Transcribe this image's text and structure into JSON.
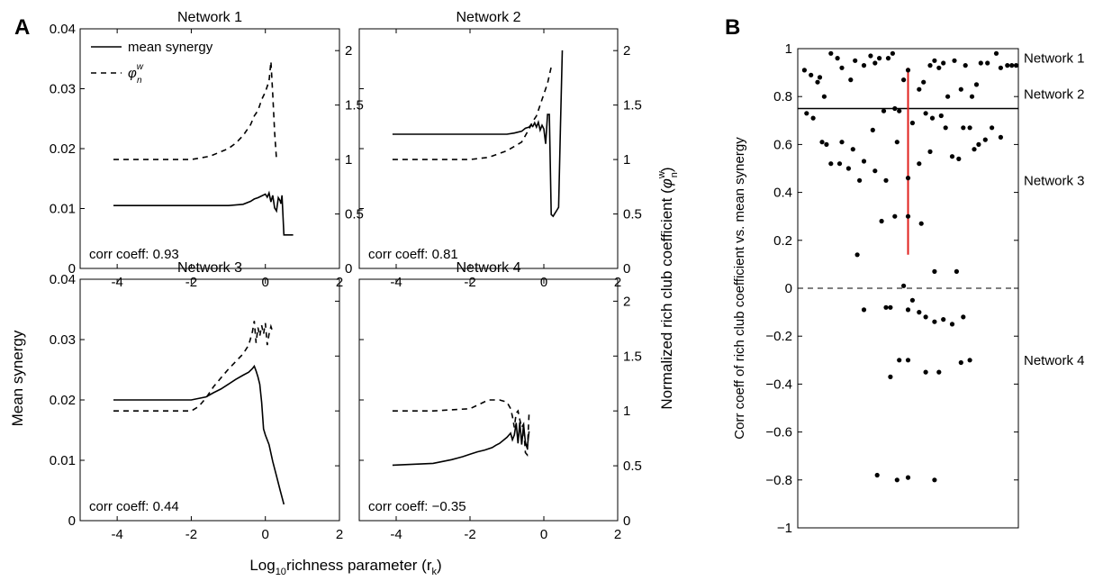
{
  "panel_labels": {
    "a": "A",
    "b": "B"
  },
  "shared": {
    "xlabel": {
      "pre": "Log",
      "sub": "10",
      "mid": "richness parameter (r",
      "sub2": "k",
      "post": ")"
    },
    "ylabel_left": "Mean synergy",
    "ylabel_right": {
      "pre": "Normalized rich club coefficient (",
      "phi": "φ",
      "sup": "w",
      "sub": "n",
      "post": ")"
    },
    "legend": {
      "solid": "mean synergy",
      "dashed_phi": "φ",
      "dashed_sup": "w",
      "dashed_sub": "n"
    }
  },
  "chart_data": [
    {
      "type": "line",
      "title": "Network 1",
      "annotation": "corr coeff: 0.93",
      "xlim": [
        -5,
        2
      ],
      "ylim": [
        0,
        0.04
      ],
      "y2lim": [
        0,
        2.2
      ],
      "xticks": [
        "-4",
        "-2",
        "0",
        "2"
      ],
      "yticks": [
        "0",
        "0.01",
        "0.02",
        "0.03",
        "0.04"
      ],
      "y2ticks": [
        "0",
        "0.5",
        "1",
        "1.5",
        "2"
      ],
      "series": [
        {
          "name": "mean synergy",
          "axis": "left",
          "style": "solid",
          "x": [
            -4.1,
            -1.0,
            -0.6,
            -0.4,
            -0.3,
            -0.2,
            -0.1,
            0.0,
            0.05,
            0.1,
            0.15,
            0.2,
            0.25,
            0.3,
            0.35,
            0.4,
            0.42,
            0.45,
            0.5,
            0.55,
            0.6,
            0.75
          ],
          "y": [
            0.0105,
            0.0105,
            0.0107,
            0.0112,
            0.0116,
            0.0118,
            0.0121,
            0.0124,
            0.0119,
            0.0126,
            0.0111,
            0.0122,
            0.0101,
            0.0096,
            0.0118,
            0.0113,
            0.0108,
            0.0122,
            0.0056,
            0.0056,
            0.0056,
            0.0056
          ]
        },
        {
          "name": "φnw",
          "axis": "right",
          "style": "dashed",
          "x": [
            -4.1,
            -2.0,
            -1.5,
            -1.0,
            -0.8,
            -0.6,
            -0.4,
            -0.3,
            -0.2,
            -0.1,
            0.0,
            0.1,
            0.15,
            0.2,
            0.25,
            0.3
          ],
          "y": [
            1.0,
            1.0,
            1.03,
            1.1,
            1.15,
            1.22,
            1.32,
            1.4,
            1.45,
            1.55,
            1.62,
            1.72,
            1.9,
            1.6,
            1.25,
            1.0
          ]
        }
      ]
    },
    {
      "type": "line",
      "title": "Network 2",
      "annotation": "corr coeff: 0.81",
      "xlim": [
        -5,
        2
      ],
      "ylim": [
        0,
        0.04
      ],
      "y2lim": [
        0,
        2.2
      ],
      "xticks": [
        "-4",
        "-2",
        "0",
        "2"
      ],
      "yticks": [],
      "y2ticks": [
        "0",
        "0.5",
        "1",
        "1.5",
        "2"
      ],
      "series": [
        {
          "name": "mean synergy",
          "axis": "left",
          "style": "solid",
          "x": [
            -4.1,
            -1.0,
            -0.8,
            -0.6,
            -0.5,
            -0.4,
            -0.35,
            -0.3,
            -0.25,
            -0.2,
            -0.15,
            -0.1,
            -0.05,
            0.0,
            0.05,
            0.1,
            0.15,
            0.2,
            0.25,
            0.3,
            0.35,
            0.4,
            0.45,
            0.5
          ],
          "y": [
            0.0224,
            0.0224,
            0.0226,
            0.0229,
            0.0234,
            0.0236,
            0.024,
            0.0237,
            0.0243,
            0.0236,
            0.0244,
            0.0231,
            0.0239,
            0.0233,
            0.0208,
            0.0257,
            0.0257,
            0.009,
            0.0087,
            0.0092,
            0.0097,
            0.0102,
            0.024,
            0.0364
          ]
        },
        {
          "name": "φnw",
          "axis": "right",
          "style": "dashed",
          "x": [
            -4.1,
            -2.0,
            -1.5,
            -1.0,
            -0.6,
            -0.4,
            -0.3,
            -0.2,
            -0.1,
            0.0,
            0.1,
            0.2,
            0.25
          ],
          "y": [
            1.0,
            1.0,
            1.02,
            1.08,
            1.16,
            1.28,
            1.35,
            1.4,
            1.5,
            1.6,
            1.7,
            1.85,
            1.85
          ]
        }
      ]
    },
    {
      "type": "line",
      "title": "Network 3",
      "annotation": "corr coeff: 0.44",
      "xlim": [
        -5,
        2
      ],
      "ylim": [
        0,
        0.04
      ],
      "y2lim": [
        0,
        2.2
      ],
      "xticks": [
        "-4",
        "-2",
        "0",
        "2"
      ],
      "yticks": [
        "0",
        "0.01",
        "0.02",
        "0.03",
        "0.04"
      ],
      "y2ticks": [],
      "series": [
        {
          "name": "mean synergy",
          "axis": "left",
          "style": "solid",
          "x": [
            -4.1,
            -2.0,
            -1.6,
            -1.4,
            -1.2,
            -1.0,
            -0.8,
            -0.6,
            -0.45,
            -0.35,
            -0.3,
            -0.25,
            -0.2,
            -0.15,
            -0.1,
            -0.05,
            0.0,
            0.1,
            0.2,
            0.3,
            0.4,
            0.5
          ],
          "y": [
            0.02,
            0.02,
            0.0205,
            0.0212,
            0.0218,
            0.0226,
            0.0234,
            0.0241,
            0.0246,
            0.0252,
            0.0256,
            0.0248,
            0.0238,
            0.0226,
            0.0196,
            0.0152,
            0.0142,
            0.0126,
            0.0098,
            0.0074,
            0.005,
            0.0027
          ]
        },
        {
          "name": "φnw",
          "axis": "right",
          "style": "dashed",
          "x": [
            -4.1,
            -2.0,
            -1.8,
            -1.6,
            -1.4,
            -1.2,
            -1.0,
            -0.8,
            -0.6,
            -0.45,
            -0.35,
            -0.3,
            -0.25,
            -0.2,
            -0.15,
            -0.1,
            -0.05,
            0.0,
            0.05,
            0.1,
            0.15,
            0.2
          ],
          "y": [
            1.0,
            1.0,
            1.04,
            1.12,
            1.22,
            1.3,
            1.38,
            1.45,
            1.52,
            1.6,
            1.72,
            1.82,
            1.62,
            1.76,
            1.68,
            1.78,
            1.7,
            1.8,
            1.6,
            1.7,
            1.77,
            1.72
          ]
        }
      ]
    },
    {
      "type": "line",
      "title": "Network 4",
      "annotation": "corr coeff: −0.35",
      "xlim": [
        -5,
        2
      ],
      "ylim": [
        0,
        0.04
      ],
      "y2lim": [
        0,
        2.2
      ],
      "xticks": [
        "-4",
        "-2",
        "0",
        "2"
      ],
      "yticks": [],
      "y2ticks": [
        "0",
        "0.5",
        "1",
        "1.5",
        "2"
      ],
      "series": [
        {
          "name": "mean synergy",
          "axis": "left",
          "style": "solid",
          "x": [
            -4.1,
            -3.0,
            -2.5,
            -2.2,
            -2.0,
            -1.8,
            -1.6,
            -1.4,
            -1.3,
            -1.2,
            -1.1,
            -1.0,
            -0.9,
            -0.85,
            -0.8,
            -0.75,
            -0.7,
            -0.65,
            -0.6,
            -0.55,
            -0.5,
            -0.45,
            -0.4
          ],
          "y": [
            0.0092,
            0.0095,
            0.0101,
            0.0106,
            0.011,
            0.0114,
            0.0117,
            0.0121,
            0.0125,
            0.0128,
            0.0133,
            0.0138,
            0.0145,
            0.0134,
            0.0142,
            0.0162,
            0.0128,
            0.0163,
            0.0126,
            0.0159,
            0.013,
            0.012,
            0.0148
          ]
        },
        {
          "name": "φnw",
          "axis": "right",
          "style": "dashed",
          "x": [
            -4.1,
            -3.0,
            -2.0,
            -1.5,
            -1.2,
            -1.0,
            -0.9,
            -0.85,
            -0.8,
            -0.75,
            -0.7,
            -0.65,
            -0.6,
            -0.55,
            -0.5,
            -0.45,
            -0.4
          ],
          "y": [
            1.0,
            1.0,
            1.02,
            1.1,
            1.1,
            1.08,
            1.02,
            0.95,
            0.85,
            0.98,
            1.0,
            0.92,
            0.85,
            0.88,
            0.62,
            0.6,
            0.98
          ]
        }
      ]
    },
    {
      "type": "scatter",
      "ylabel": "Corr coeff of rich club coefficient vs. mean synergy",
      "ylim": [
        -1,
        1
      ],
      "yticks": [
        "−1",
        "−0.8",
        "−0.6",
        "−0.4",
        "−0.2",
        "0",
        "0.2",
        "0.4",
        "0.6",
        "0.8",
        "1"
      ],
      "xlim": [
        0,
        1
      ],
      "group_labels": [
        "Network 1",
        "Network 2",
        "Network 3",
        "Network 4"
      ],
      "group_label_y": [
        0.96,
        0.81,
        0.45,
        -0.3
      ],
      "threshold_line": 0.75,
      "zero_line": 0,
      "median_bar": {
        "x": 0.5,
        "y": [
          0.14,
          0.92
        ]
      },
      "points_x": [
        0.03,
        0.06,
        0.09,
        0.1,
        0.12,
        0.15,
        0.18,
        0.2,
        0.24,
        0.26,
        0.3,
        0.33,
        0.35,
        0.37,
        0.41,
        0.43,
        0.44,
        0.48,
        0.5,
        0.55,
        0.57,
        0.6,
        0.62,
        0.64,
        0.66,
        0.68,
        0.71,
        0.74,
        0.76,
        0.79,
        0.81,
        0.83,
        0.86,
        0.9,
        0.92,
        0.95,
        0.97,
        0.99,
        0.04,
        0.07,
        0.11,
        0.13,
        0.19,
        0.23,
        0.28,
        0.34,
        0.39,
        0.45,
        0.52,
        0.58,
        0.61,
        0.67,
        0.73,
        0.78,
        0.82,
        0.88,
        0.92,
        0.15,
        0.2,
        0.25,
        0.3,
        0.35,
        0.4,
        0.46,
        0.5,
        0.55,
        0.6,
        0.65,
        0.7,
        0.75,
        0.8,
        0.85,
        0.27,
        0.38,
        0.44,
        0.5,
        0.56,
        0.62,
        0.72,
        0.3,
        0.4,
        0.48,
        0.52,
        0.55,
        0.62,
        0.66,
        0.7,
        0.75,
        0.42,
        0.46,
        0.5,
        0.58,
        0.64,
        0.74,
        0.78,
        0.36,
        0.45,
        0.5,
        0.62,
        0.42,
        0.5,
        0.58
      ],
      "points_y": [
        0.91,
        0.89,
        0.86,
        0.88,
        0.8,
        0.98,
        0.96,
        0.92,
        0.87,
        0.95,
        0.93,
        0.97,
        0.94,
        0.96,
        0.96,
        0.98,
        0.75,
        0.87,
        0.91,
        0.83,
        0.86,
        0.93,
        0.95,
        0.92,
        0.94,
        0.8,
        0.95,
        0.83,
        0.93,
        0.8,
        0.85,
        0.94,
        0.94,
        0.98,
        0.92,
        0.93,
        0.93,
        0.93,
        0.73,
        0.71,
        0.61,
        0.6,
        0.52,
        0.5,
        0.45,
        0.66,
        0.74,
        0.61,
        0.69,
        0.73,
        0.71,
        0.67,
        0.54,
        0.67,
        0.6,
        0.67,
        0.63,
        0.52,
        0.61,
        0.58,
        0.53,
        0.49,
        0.45,
        0.74,
        0.46,
        0.52,
        0.57,
        0.72,
        0.55,
        0.67,
        0.58,
        0.62,
        0.14,
        0.28,
        0.3,
        0.3,
        0.27,
        0.07,
        0.07,
        -0.09,
        -0.08,
        0.01,
        -0.05,
        -0.1,
        -0.14,
        -0.13,
        -0.15,
        -0.12,
        -0.37,
        -0.3,
        -0.3,
        -0.35,
        -0.35,
        -0.31,
        -0.3,
        -0.78,
        -0.8,
        -0.79,
        -0.8,
        -0.08,
        -0.09,
        -0.12
      ]
    }
  ]
}
